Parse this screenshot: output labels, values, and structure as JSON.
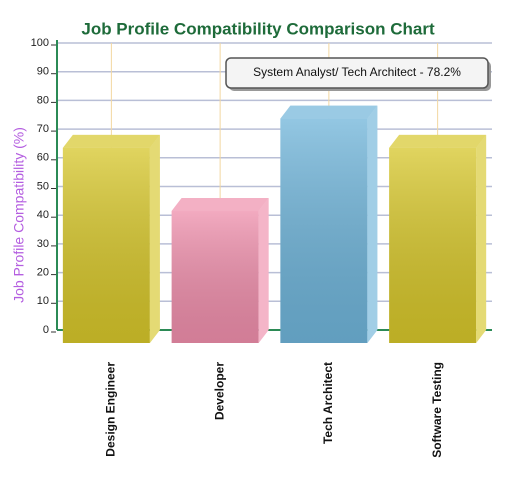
{
  "chart_data": {
    "type": "bar3d",
    "title": "Job Profile Compatibility Comparison Chart",
    "y_label": "Job Profile Compatibility (%)",
    "annotation": "System Analyst/ Tech Architect - 78.2%",
    "categories": [
      "Design Engineer",
      "Developer",
      "Tech Architect",
      "Software Testing"
    ],
    "values": [
      68,
      46,
      78.2,
      68
    ],
    "colors": [
      "#d6c62a",
      "#ee8eab",
      "#6fb4d9",
      "#d6c62a"
    ],
    "ylim": [
      0,
      100
    ],
    "yticks": [
      0,
      10,
      20,
      30,
      40,
      50,
      60,
      70,
      80,
      90,
      100
    ],
    "grid": true
  }
}
